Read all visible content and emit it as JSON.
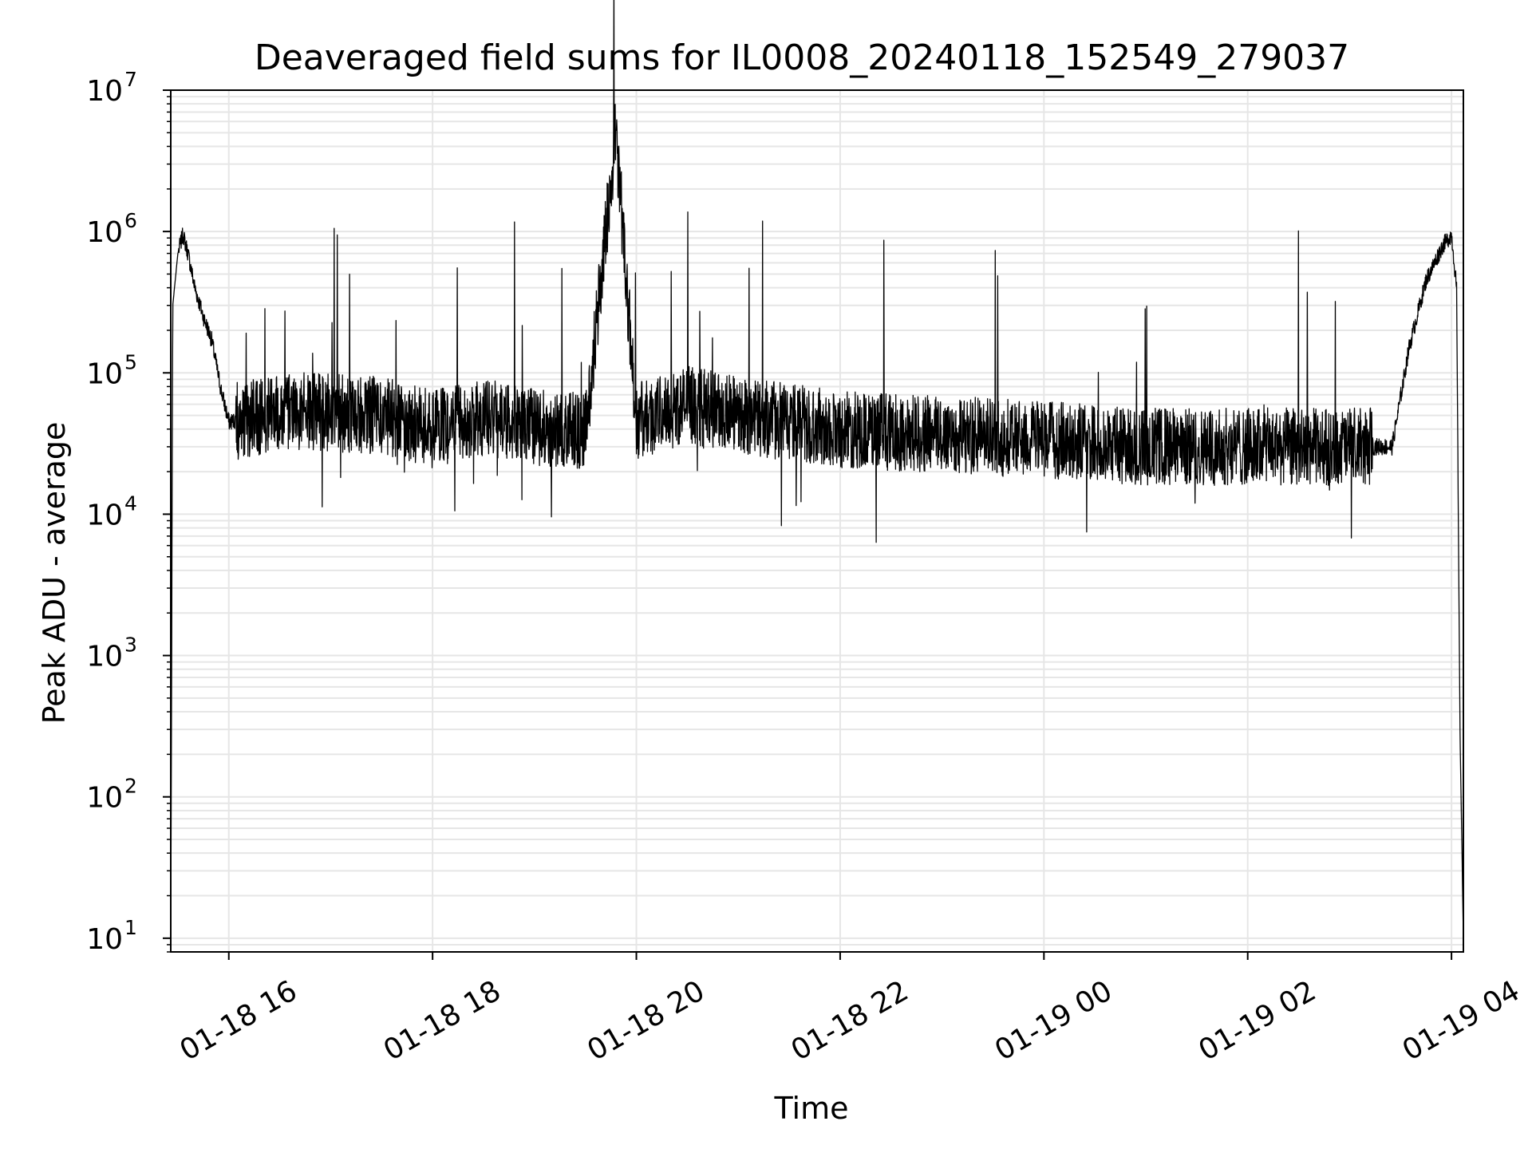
{
  "chart_data": {
    "type": "line",
    "title": "Deaveraged field sums for IL0008_20240118_152549_279037",
    "xlabel": "Time",
    "ylabel": "Peak ADU - average",
    "yscale": "log",
    "ylim": [
      8,
      10000000
    ],
    "xlim": [
      "2024-01-18 15:25:49",
      "2024-01-19 04:07:00"
    ],
    "y_ticks": [
      {
        "base": "10",
        "exp": "1",
        "value": 10
      },
      {
        "base": "10",
        "exp": "2",
        "value": 100
      },
      {
        "base": "10",
        "exp": "3",
        "value": 1000
      },
      {
        "base": "10",
        "exp": "4",
        "value": 10000
      },
      {
        "base": "10",
        "exp": "5",
        "value": 100000
      },
      {
        "base": "10",
        "exp": "6",
        "value": 1000000
      },
      {
        "base": "10",
        "exp": "7",
        "value": 10000000
      }
    ],
    "x_ticks": [
      {
        "label": "01-18 16",
        "value": "2024-01-18 16:00"
      },
      {
        "label": "01-18 18",
        "value": "2024-01-18 18:00"
      },
      {
        "label": "01-18 20",
        "value": "2024-01-18 20:00"
      },
      {
        "label": "01-18 22",
        "value": "2024-01-18 22:00"
      },
      {
        "label": "01-19 00",
        "value": "2024-01-19 00:00"
      },
      {
        "label": "01-19 02",
        "value": "2024-01-19 02:00"
      },
      {
        "label": "01-19 04",
        "value": "2024-01-19 04:00"
      }
    ],
    "grid": true,
    "line_color": "#000000",
    "grid_color": "#e6e6e6",
    "series": [
      {
        "x": [
          "2024-01-18 15:25:49",
          "2024-01-18 15:27",
          "2024-01-18 15:30",
          "2024-01-18 15:33",
          "2024-01-18 15:36",
          "2024-01-18 15:40",
          "2024-01-18 15:45",
          "2024-01-18 15:50",
          "2024-01-18 15:55",
          "2024-01-18 16:00",
          "2024-01-18 16:15",
          "2024-01-18 16:30",
          "2024-01-18 17:00",
          "2024-01-18 17:30",
          "2024-01-18 18:00",
          "2024-01-18 18:30",
          "2024-01-18 19:00",
          "2024-01-18 19:30",
          "2024-01-18 19:48",
          "2024-01-18 20:00",
          "2024-01-18 20:30",
          "2024-01-18 21:00",
          "2024-01-18 21:30",
          "2024-01-18 22:00",
          "2024-01-18 22:30",
          "2024-01-18 23:00",
          "2024-01-18 23:30",
          "2024-01-19 00:00",
          "2024-01-19 00:30",
          "2024-01-19 01:00",
          "2024-01-19 01:30",
          "2024-01-19 02:00",
          "2024-01-19 02:30",
          "2024-01-19 03:00",
          "2024-01-19 03:25",
          "2024-01-19 03:35",
          "2024-01-19 03:45",
          "2024-01-19 03:55",
          "2024-01-19 04:00",
          "2024-01-19 04:03",
          "2024-01-19 04:05",
          "2024-01-19 04:07"
        ],
        "y": [
          10,
          300000,
          700000,
          950000,
          700000,
          400000,
          250000,
          170000,
          80000,
          45000,
          48000,
          55000,
          52000,
          50000,
          40000,
          48000,
          42000,
          38000,
          5200000,
          45000,
          60000,
          50000,
          45000,
          40000,
          38000,
          37000,
          35000,
          34000,
          32000,
          30000,
          30000,
          30000,
          30000,
          30000,
          30000,
          150000,
          450000,
          800000,
          950000,
          400000,
          300,
          10
        ]
      }
    ]
  }
}
